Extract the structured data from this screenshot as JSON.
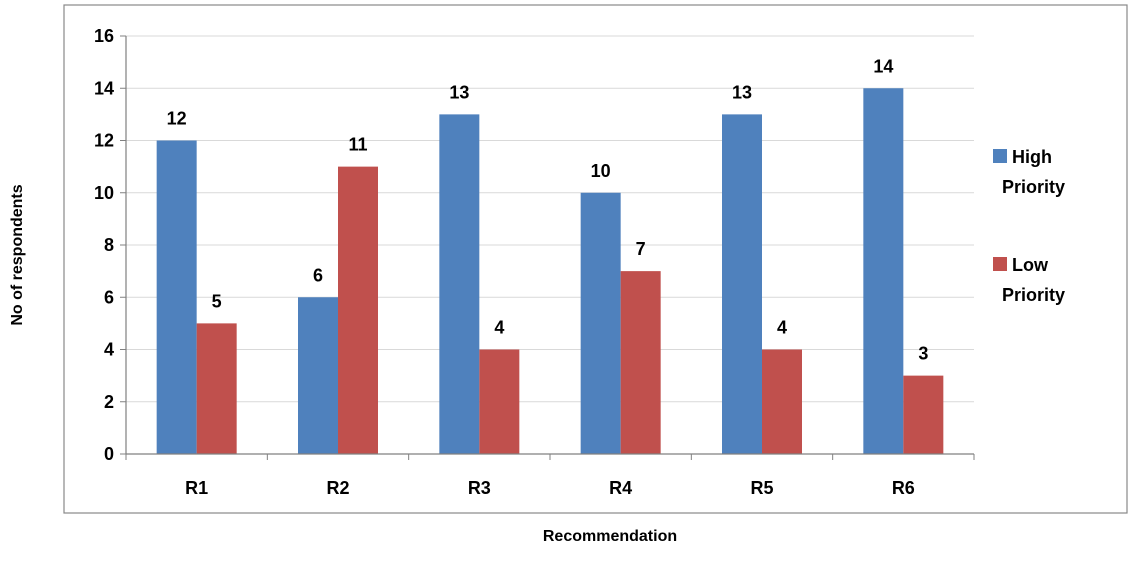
{
  "chart_data": {
    "type": "bar",
    "categories": [
      "R1",
      "R2",
      "R3",
      "R4",
      "R5",
      "R6"
    ],
    "series": [
      {
        "name": "High Priority",
        "values": [
          12,
          6,
          13,
          10,
          13,
          14
        ],
        "color": "#4F81BD"
      },
      {
        "name": "Low Priority",
        "values": [
          5,
          11,
          4,
          7,
          4,
          3
        ],
        "color": "#C0504D"
      }
    ],
    "xlabel": "Recommendation",
    "ylabel": "No of respondents",
    "ylim": [
      0,
      16
    ],
    "yticks": [
      0,
      2,
      4,
      6,
      8,
      10,
      12,
      14,
      16
    ],
    "grid": true,
    "legend_position": "right",
    "data_labels": true
  }
}
